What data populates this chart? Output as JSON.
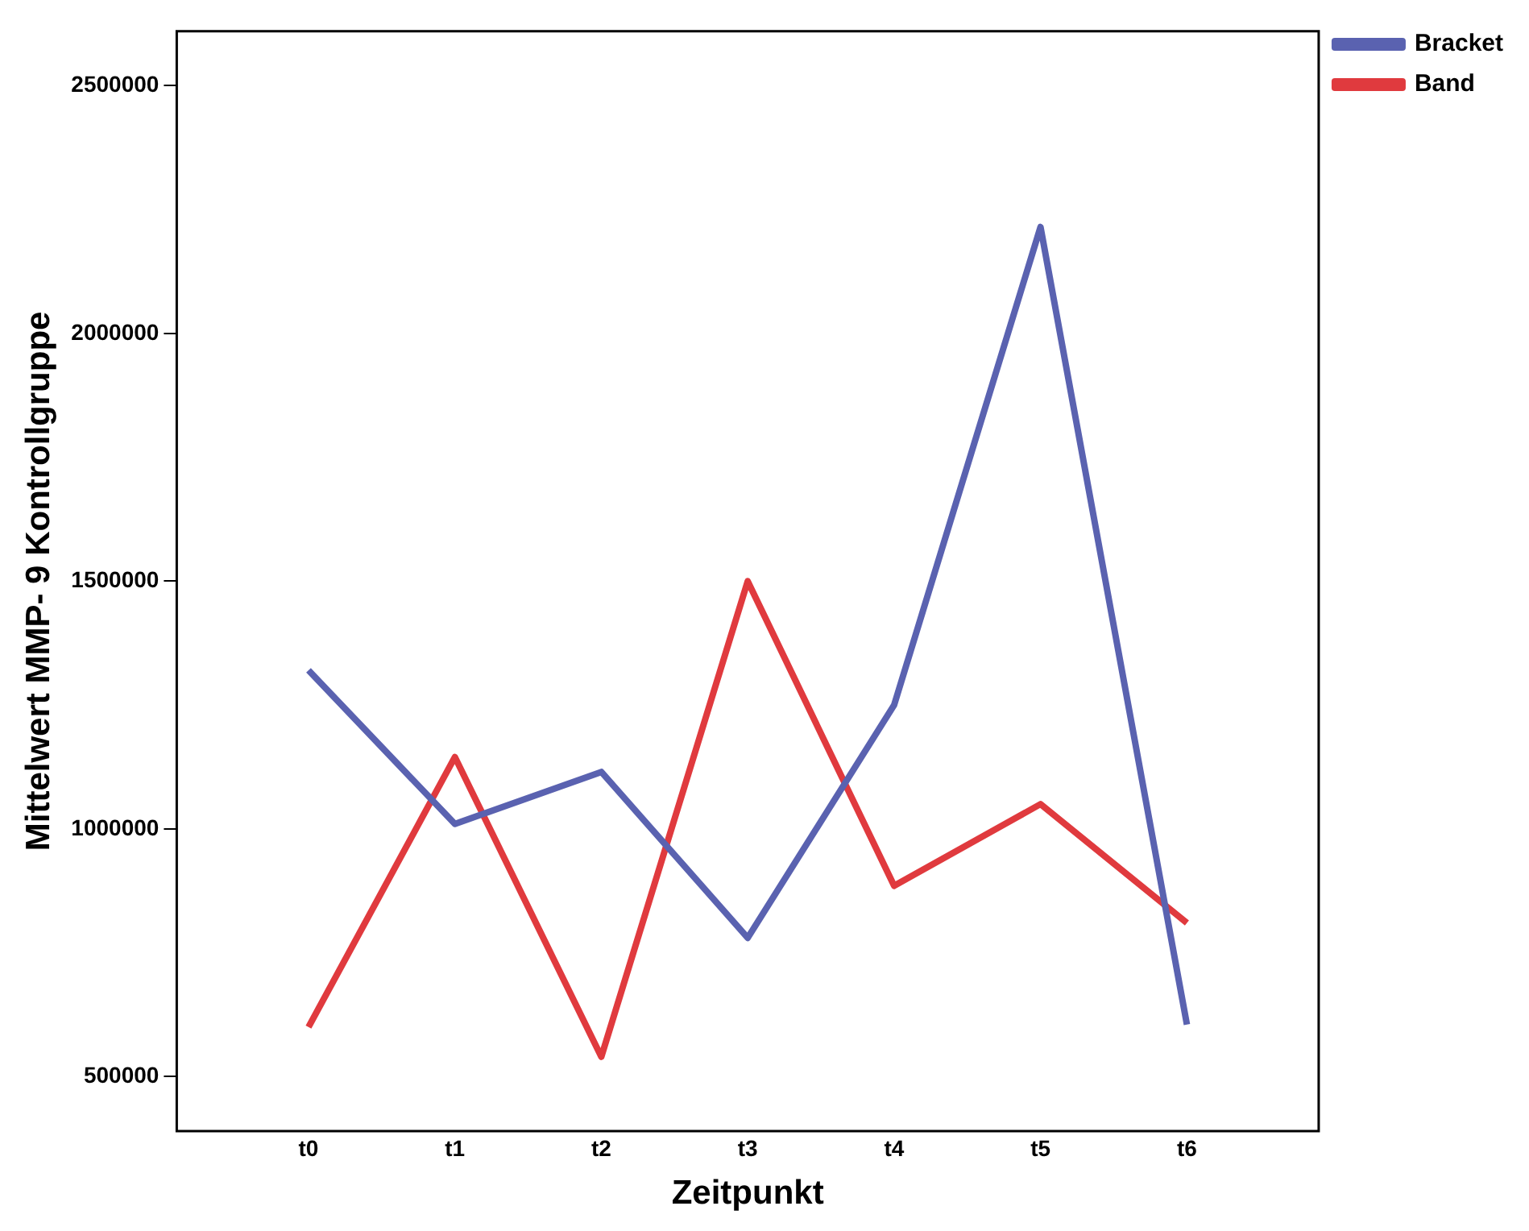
{
  "chart_data": {
    "type": "line",
    "xlabel": "Zeitpunkt",
    "ylabel": "Mittelwert MMP- 9 Kontrollgruppe",
    "categories": [
      "t0",
      "t1",
      "t2",
      "t3",
      "t4",
      "t5",
      "t6"
    ],
    "series": [
      {
        "name": "Bracket",
        "color": "#5a62b0",
        "values": [
          1320000,
          1010000,
          1115000,
          780000,
          1250000,
          2215000,
          605000
        ]
      },
      {
        "name": "Band",
        "color": "#e03a3e",
        "values": [
          600000,
          1145000,
          540000,
          1500000,
          885000,
          1050000,
          810000
        ]
      }
    ],
    "ylim": [
      390000,
      2610000
    ],
    "yticks": [
      500000,
      1000000,
      1500000,
      2000000,
      2500000
    ],
    "grid": false,
    "legend": "top right",
    "marker": "none",
    "line_style": "solid"
  }
}
